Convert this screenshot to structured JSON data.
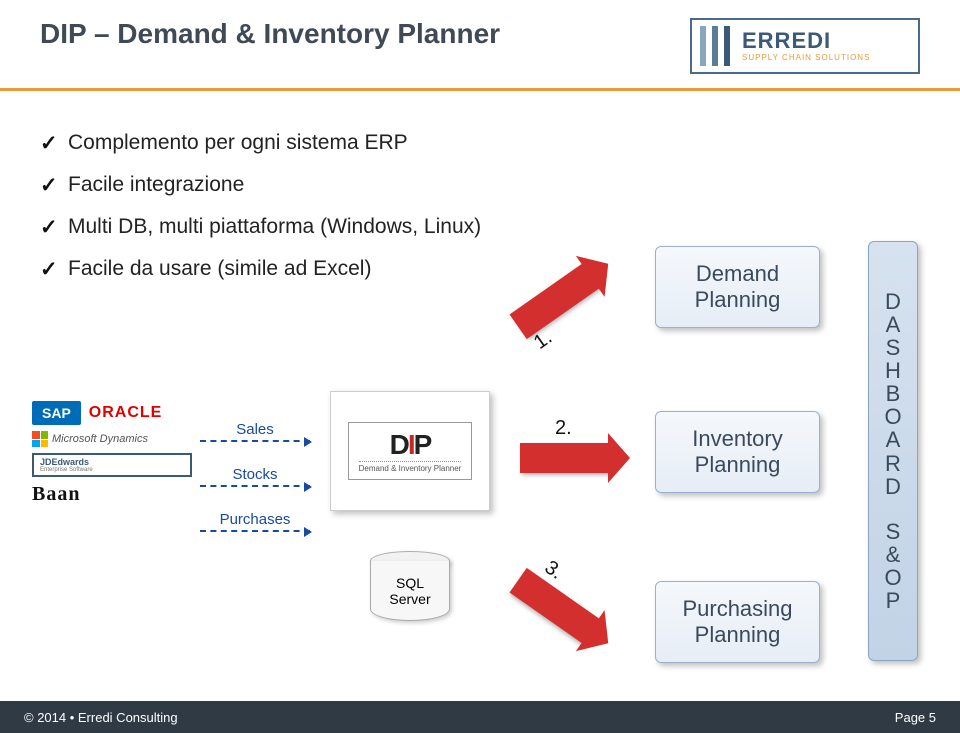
{
  "header": {
    "title": "DIP – Demand & Inventory Planner",
    "logo_main": "ERREDI",
    "logo_sub": "SUPPLY CHAIN SOLUTIONS"
  },
  "bullets": [
    "Complemento per ogni sistema ERP",
    "Facile integrazione",
    "Multi DB, multi piattaforma (Windows, Linux)",
    "Facile da usare (simile ad Excel)"
  ],
  "erp_logos": {
    "sap": "SAP",
    "oracle": "ORACLE",
    "msdynamics": "Microsoft Dynamics",
    "jdedwards": "JDEdwards",
    "jdedwards_sub": "Enterprise Software",
    "baan": "Baan"
  },
  "flows": [
    "Sales",
    "Stocks",
    "Purchases"
  ],
  "dip": {
    "logo_prefix": "D",
    "logo_mid": "I",
    "logo_suffix": "P",
    "sub": "Demand & Inventory Planner"
  },
  "sql": {
    "line1": "SQL",
    "line2": "Server"
  },
  "arrow_numbers": [
    "1.",
    "2.",
    "3."
  ],
  "plan_boxes": [
    {
      "l1": "Demand",
      "l2": "Planning"
    },
    {
      "l1": "Inventory",
      "l2": "Planning"
    },
    {
      "l1": "Purchasing",
      "l2": "Planning"
    }
  ],
  "dashboard": [
    "D",
    "A",
    "S",
    "H",
    "B",
    "O",
    "A",
    "R",
    "D"
  ],
  "sop": [
    "S",
    "&",
    "O",
    "P"
  ],
  "footer": {
    "left": "© 2014 • Erredi Consulting",
    "right": "Page 5"
  },
  "colors": {
    "accent_orange": "#e89a3c",
    "title_color": "#3f4a56",
    "flow_blue": "#1a4aa0",
    "arrow_red": "#d32f2f",
    "plan_text": "#3a4a5c",
    "footer_bg": "#2f3a44"
  }
}
